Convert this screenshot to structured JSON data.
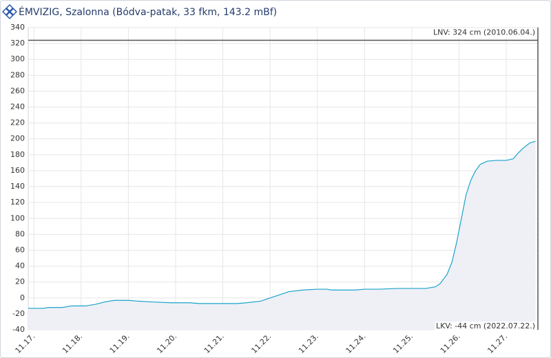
{
  "chart_data": {
    "type": "line",
    "title": "ÉMVIZIG, Szalonna (Bódva-patak, 33 fkm, 143.2 mBf)",
    "ylim": [
      -40,
      340
    ],
    "yticks": [
      -40,
      -20,
      0,
      20,
      40,
      60,
      80,
      100,
      120,
      140,
      160,
      180,
      200,
      220,
      240,
      260,
      280,
      300,
      320,
      340
    ],
    "xlim": [
      16.88,
      27.67
    ],
    "xticks": [
      {
        "value": 17,
        "label": "11.17."
      },
      {
        "value": 18,
        "label": "11.18."
      },
      {
        "value": 19,
        "label": "11.19."
      },
      {
        "value": 20,
        "label": "11.20."
      },
      {
        "value": 21,
        "label": "11.21."
      },
      {
        "value": 22,
        "label": "11.22."
      },
      {
        "value": 23,
        "label": "11.23."
      },
      {
        "value": 24,
        "label": "11.24."
      },
      {
        "value": 25,
        "label": "11.25."
      },
      {
        "value": 26,
        "label": "11.26."
      },
      {
        "value": 27,
        "label": "11.27."
      }
    ],
    "grid": true,
    "series": [
      {
        "color": "#1aa3c8",
        "fill": "#eef0f6",
        "x": [
          16.88,
          17.2,
          17.3,
          17.6,
          17.8,
          18.1,
          18.3,
          18.5,
          18.7,
          19.0,
          19.2,
          19.5,
          19.9,
          20.3,
          20.5,
          21.0,
          21.3,
          21.5,
          21.8,
          22.0,
          22.2,
          22.4,
          22.7,
          23.0,
          23.2,
          23.3,
          23.8,
          24.0,
          24.3,
          24.7,
          25.0,
          25.3,
          25.5,
          25.6,
          25.75,
          25.85,
          25.95,
          26.05,
          26.15,
          26.25,
          26.35,
          26.45,
          26.6,
          26.8,
          27.0,
          27.15,
          27.25,
          27.35,
          27.5,
          27.62
        ],
        "values": [
          -13,
          -13,
          -12,
          -12,
          -10,
          -10,
          -8,
          -5,
          -3,
          -3,
          -4,
          -5,
          -6,
          -6,
          -7,
          -7,
          -7,
          -6,
          -4,
          0,
          4,
          8,
          10,
          11,
          11,
          10,
          10,
          11,
          11,
          12,
          12,
          12,
          14,
          18,
          30,
          45,
          70,
          100,
          130,
          148,
          160,
          168,
          172,
          173,
          173,
          175,
          182,
          188,
          195,
          197
        ]
      }
    ],
    "thresholds": [
      {
        "value": 324,
        "label": "LNV: 324 cm (2010.06.04.)",
        "color": "#555555"
      },
      {
        "value": -44,
        "label": "LKV: -44 cm (2022.07.22.)",
        "color": "#555555"
      }
    ]
  }
}
